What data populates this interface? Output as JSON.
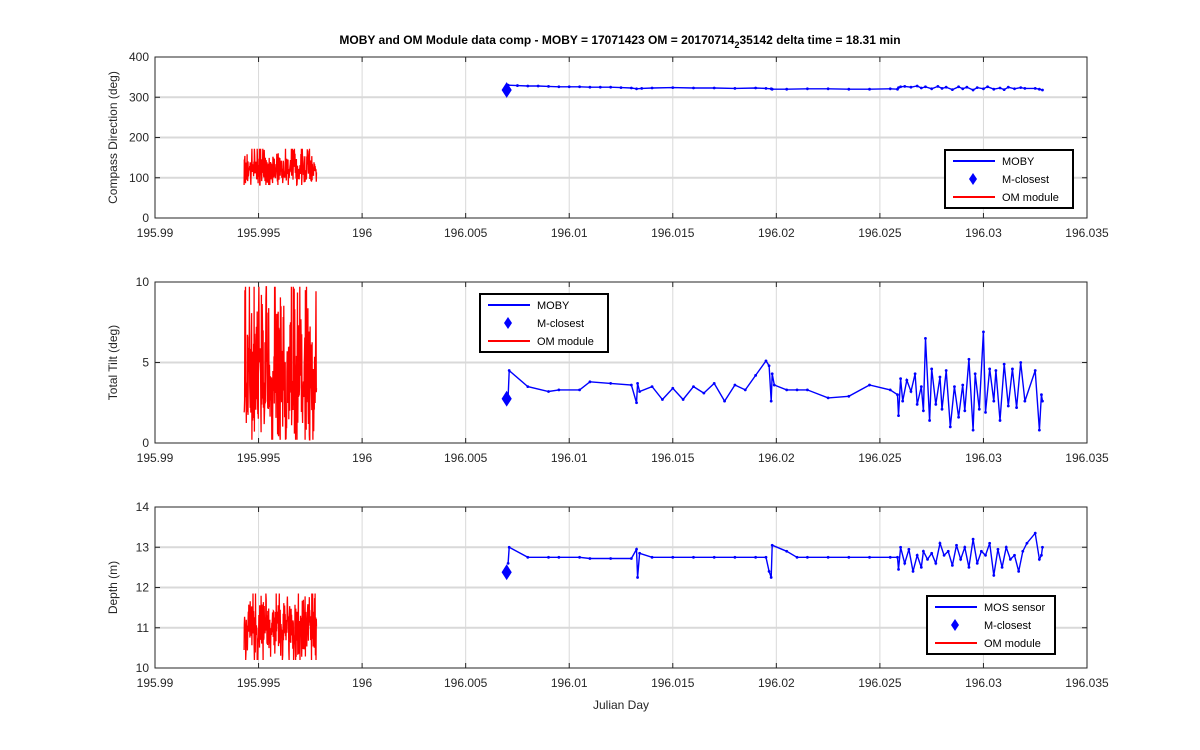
{
  "figure_title": {
    "prefix": "MOBY and OM Module data comp - MOBY = 17071423 OM = 20170714",
    "subscript": "2",
    "suffix": "35142 delta time = 18.31 min"
  },
  "colors": {
    "moby": "#0000ff",
    "om": "#ff0000",
    "grid": "#d9d9d9",
    "axis": "#262626"
  },
  "chart_data": [
    {
      "type": "line",
      "ylabel": "Compass Direction (deg)",
      "xlabel": "",
      "xlim": [
        195.99,
        196.035
      ],
      "ylim": [
        0,
        400
      ],
      "x_ticks": [
        "195.99",
        "195.995",
        "196",
        "196.005",
        "196.01",
        "196.015",
        "196.02",
        "196.025",
        "196.03",
        "196.035"
      ],
      "y_ticks": [
        "0",
        "100",
        "200",
        "300",
        "400"
      ],
      "grid": true,
      "legend_position": "bottom-right",
      "legend": [
        "MOBY",
        "M-closest",
        "OM module"
      ],
      "series": [
        {
          "name": "MOBY",
          "x": [
            196.00705,
            196.0075,
            196.008,
            196.0085,
            196.009,
            196.0095,
            196.01,
            196.0105,
            196.011,
            196.0115,
            196.012,
            196.0125,
            196.013,
            196.01325,
            196.0135,
            196.014,
            196.015,
            196.016,
            196.017,
            196.018,
            196.019,
            196.0195,
            196.01975,
            196.0198,
            196.0205,
            196.0215,
            196.0225,
            196.0235,
            196.0245,
            196.0255,
            196.02585,
            196.0259,
            196.026,
            196.0262,
            196.0265,
            196.0268,
            196.027,
            196.0272,
            196.0275,
            196.0278,
            196.028,
            196.0282,
            196.0285,
            196.0288,
            196.029,
            196.0292,
            196.0295,
            196.0297,
            196.03,
            196.0302,
            196.0305,
            196.0308,
            196.031,
            196.0312,
            196.0315,
            196.0318,
            196.032,
            196.0325,
            196.0327,
            196.03285
          ],
          "y": [
            330,
            329,
            328,
            328,
            327,
            326,
            326,
            326,
            325,
            325,
            325,
            324,
            323,
            321,
            322,
            323,
            324,
            323,
            323,
            322,
            323,
            322,
            321,
            320,
            320,
            321,
            321,
            320,
            320,
            321,
            320,
            324,
            326,
            327,
            325,
            328,
            323,
            326,
            321,
            327,
            322,
            325,
            319,
            326,
            321,
            325,
            318,
            324,
            321,
            326,
            320,
            323,
            319,
            325,
            321,
            324,
            322,
            322,
            320,
            318
          ]
        },
        {
          "name": "M-closest",
          "x": [
            196.00698
          ],
          "y": [
            318
          ]
        },
        {
          "name": "OM module",
          "x_range": [
            195.9943,
            195.9978
          ],
          "y_range": [
            82,
            172
          ],
          "mean": 125
        }
      ]
    },
    {
      "type": "line",
      "ylabel": "Total Tilt (deg)",
      "xlabel": "",
      "xlim": [
        195.99,
        196.035
      ],
      "ylim": [
        0,
        10
      ],
      "x_ticks": [
        "195.99",
        "195.995",
        "196",
        "196.005",
        "196.01",
        "196.015",
        "196.02",
        "196.025",
        "196.03",
        "196.035"
      ],
      "y_ticks": [
        "0",
        "5",
        "10"
      ],
      "grid": true,
      "legend_position": "top-center",
      "legend": [
        "MOBY",
        "M-closest",
        "OM module"
      ],
      "series": [
        {
          "name": "MOBY",
          "x": [
            196.00705,
            196.0071,
            196.008,
            196.009,
            196.0095,
            196.0105,
            196.011,
            196.012,
            196.013,
            196.01325,
            196.0133,
            196.0134,
            196.014,
            196.0145,
            196.015,
            196.0155,
            196.016,
            196.0165,
            196.017,
            196.0175,
            196.018,
            196.0185,
            196.019,
            196.0195,
            196.01965,
            196.01975,
            196.0198,
            196.0199,
            196.0205,
            196.021,
            196.0215,
            196.0225,
            196.0235,
            196.0245,
            196.0255,
            196.02585,
            196.0259,
            196.026,
            196.0261,
            196.0263,
            196.0265,
            196.0267,
            196.0268,
            196.027,
            196.0271,
            196.0272,
            196.0274,
            196.0275,
            196.0277,
            196.0279,
            196.028,
            196.0282,
            196.0284,
            196.0286,
            196.0288,
            196.029,
            196.0291,
            196.0293,
            196.0295,
            196.0296,
            196.0298,
            196.03,
            196.0301,
            196.0303,
            196.0305,
            196.0306,
            196.0308,
            196.031,
            196.0312,
            196.0314,
            196.0316,
            196.0318,
            196.032,
            196.0325,
            196.0327,
            196.0328,
            196.03285
          ],
          "y": [
            2.8,
            4.5,
            3.5,
            3.2,
            3.3,
            3.3,
            3.8,
            3.7,
            3.6,
            2.5,
            3.7,
            3.2,
            3.5,
            2.7,
            3.4,
            2.7,
            3.5,
            3.1,
            3.7,
            2.6,
            3.6,
            3.3,
            4.2,
            5.1,
            4.8,
            2.6,
            4.3,
            3.6,
            3.3,
            3.3,
            3.3,
            2.8,
            2.9,
            3.6,
            3.3,
            3.0,
            1.7,
            4.0,
            2.6,
            3.9,
            3.2,
            4.3,
            2.4,
            3.5,
            2.0,
            6.5,
            1.4,
            4.6,
            2.4,
            4.1,
            2.1,
            4.5,
            1.0,
            3.5,
            1.6,
            3.6,
            2.0,
            5.2,
            0.8,
            4.3,
            2.1,
            6.9,
            1.9,
            4.6,
            2.6,
            4.5,
            1.4,
            4.9,
            2.3,
            4.6,
            2.2,
            5.0,
            2.6,
            4.5,
            0.8,
            3.0,
            2.6
          ]
        },
        {
          "name": "M-closest",
          "x": [
            196.00698
          ],
          "y": [
            2.75
          ]
        },
        {
          "name": "OM module",
          "x_range": [
            195.9943,
            195.9978
          ],
          "y_range": [
            0.2,
            9.7
          ],
          "mean": 3.3
        }
      ]
    },
    {
      "type": "line",
      "ylabel": "Depth (m)",
      "xlabel": "Julian Day",
      "xlim": [
        195.99,
        196.035
      ],
      "ylim": [
        10,
        14
      ],
      "x_ticks": [
        "195.99",
        "195.995",
        "196",
        "196.005",
        "196.01",
        "196.015",
        "196.02",
        "196.025",
        "196.03",
        "196.035"
      ],
      "y_ticks": [
        "10",
        "11",
        "12",
        "13",
        "14"
      ],
      "grid": true,
      "legend_position": "bottom-right",
      "legend": [
        "MOS sensor",
        "M-closest",
        "OM module"
      ],
      "series": [
        {
          "name": "MOS sensor",
          "x": [
            196.00705,
            196.0071,
            196.008,
            196.009,
            196.0095,
            196.0105,
            196.011,
            196.012,
            196.013,
            196.01325,
            196.0133,
            196.0134,
            196.014,
            196.015,
            196.016,
            196.017,
            196.018,
            196.019,
            196.0195,
            196.01965,
            196.01975,
            196.0198,
            196.0205,
            196.021,
            196.0215,
            196.0225,
            196.0235,
            196.0245,
            196.0255,
            196.02585,
            196.0259,
            196.026,
            196.0262,
            196.0264,
            196.0266,
            196.0268,
            196.027,
            196.0271,
            196.0273,
            196.0275,
            196.0277,
            196.0279,
            196.0281,
            196.0283,
            196.0285,
            196.0287,
            196.0289,
            196.0291,
            196.0293,
            196.0295,
            196.0297,
            196.0299,
            196.0301,
            196.0303,
            196.0305,
            196.0307,
            196.0309,
            196.0311,
            196.0313,
            196.0315,
            196.0317,
            196.0319,
            196.0321,
            196.0325,
            196.0327,
            196.0328,
            196.03285
          ],
          "y": [
            12.6,
            13.0,
            12.75,
            12.75,
            12.75,
            12.75,
            12.72,
            12.72,
            12.72,
            12.95,
            12.25,
            12.85,
            12.75,
            12.75,
            12.75,
            12.75,
            12.75,
            12.75,
            12.75,
            12.4,
            12.25,
            13.05,
            12.9,
            12.75,
            12.75,
            12.75,
            12.75,
            12.75,
            12.75,
            12.75,
            12.45,
            13.0,
            12.6,
            12.95,
            12.4,
            12.8,
            12.5,
            12.9,
            12.7,
            12.85,
            12.6,
            13.1,
            12.8,
            12.9,
            12.55,
            13.05,
            12.7,
            13.0,
            12.5,
            13.2,
            12.6,
            12.9,
            12.8,
            13.1,
            12.3,
            12.95,
            12.5,
            13.0,
            12.7,
            12.8,
            12.4,
            12.9,
            13.1,
            13.35,
            12.7,
            12.8,
            13.0
          ]
        },
        {
          "name": "M-closest",
          "x": [
            196.00698
          ],
          "y": [
            12.38
          ]
        },
        {
          "name": "OM module",
          "x_range": [
            195.9943,
            195.9978
          ],
          "y_range": [
            10.2,
            11.85
          ],
          "mean": 11.1
        }
      ]
    }
  ]
}
